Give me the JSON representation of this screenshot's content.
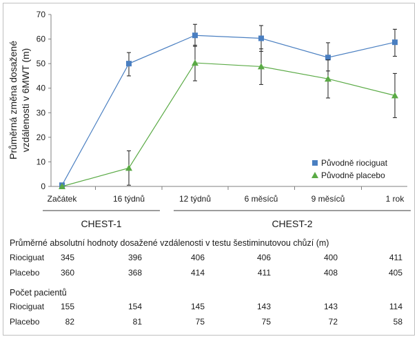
{
  "chart_data": {
    "type": "line",
    "categories": [
      "Začátek",
      "16 týdnů",
      "12 týdnů",
      "6 měsíců",
      "9 měsíců",
      "1 rok"
    ],
    "ylabel": "Průměrná změna dosažené vzdálenosti v 6MWT (m)",
    "ylim": [
      0,
      70
    ],
    "yticks": [
      0,
      10,
      20,
      30,
      40,
      50,
      60,
      70
    ],
    "grid": false,
    "legend_position": "bottom-right",
    "series": [
      {
        "name": "Původně riociguat",
        "color": "#4a7fc1",
        "marker": "square",
        "values": [
          0.5,
          50,
          61.5,
          60.3,
          52.5,
          58.7
        ],
        "err_low": [
          0.5,
          45,
          57,
          55,
          47,
          53
        ],
        "err_high": [
          0.5,
          54.5,
          66,
          65.5,
          58.5,
          64
        ]
      },
      {
        "name": "Původně placebo",
        "color": "#5aaa45",
        "marker": "triangle",
        "values": [
          0,
          7.5,
          50.3,
          48.8,
          43.8,
          37
        ],
        "err_low": [
          0,
          0.5,
          43,
          41.5,
          36,
          28
        ],
        "err_high": [
          0,
          14.5,
          57.5,
          56,
          51.5,
          46
        ]
      }
    ],
    "studies": [
      {
        "label": "CHEST-1",
        "span": [
          0,
          1
        ]
      },
      {
        "label": "CHEST-2",
        "span": [
          2,
          5
        ]
      }
    ]
  },
  "tables": {
    "abs_title": "Průměrné absolutní hodnoty dosažené vzdálenosti v testu šestiminutovou chůzí (m)",
    "abs_rows": [
      {
        "label": "Riociguat",
        "values": [
          "345",
          "396",
          "406",
          "406",
          "400",
          "411"
        ]
      },
      {
        "label": "Placebo",
        "values": [
          "360",
          "368",
          "414",
          "411",
          "408",
          "405"
        ]
      }
    ],
    "count_title": "Počet pacientů",
    "count_rows": [
      {
        "label": "Riociguat",
        "values": [
          "155",
          "154",
          "145",
          "143",
          "143",
          "114"
        ]
      },
      {
        "label": "Placebo",
        "values": [
          "82",
          "81",
          "75",
          "75",
          "72",
          "58"
        ]
      }
    ]
  }
}
